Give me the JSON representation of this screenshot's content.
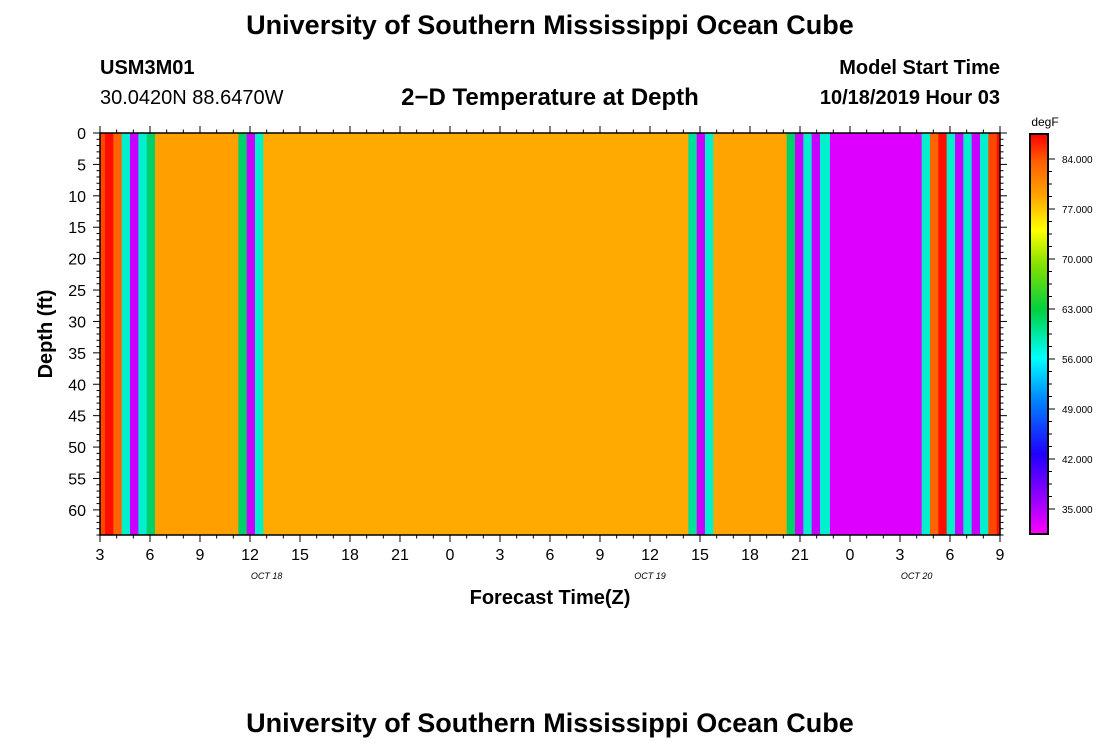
{
  "header": {
    "title": "University of Southern Mississippi Ocean Cube",
    "station_id": "USM3M01",
    "location": "30.0420N 88.6470W",
    "subtitle": "2−D Temperature at Depth",
    "model_start_label": "Model Start Time",
    "model_start_value": "10/18/2019 Hour 03"
  },
  "footer": {
    "title": "University of Southern Mississippi Ocean Cube"
  },
  "chart_data": {
    "type": "heatmap",
    "title": "2−D Temperature at Depth",
    "xlabel": "Forecast Time(Z)",
    "ylabel": "Depth (ft)",
    "y_ticks": [
      "0",
      "5",
      "10",
      "15",
      "20",
      "25",
      "30",
      "35",
      "40",
      "45",
      "50",
      "55",
      "60"
    ],
    "ylim": [
      0,
      64
    ],
    "y_inverted": true,
    "x_ticks": [
      "3",
      "6",
      "9",
      "12",
      "15",
      "18",
      "21",
      "0",
      "3",
      "6",
      "9",
      "12",
      "15",
      "18",
      "21",
      "0",
      "3",
      "6",
      "9"
    ],
    "xlim_hours_from_start": [
      0,
      54
    ],
    "date_labels": [
      {
        "label": "OCT 18",
        "at_hour": 10
      },
      {
        "label": "OCT 19",
        "at_hour": 33
      },
      {
        "label": "OCT 20",
        "at_hour": 49
      }
    ],
    "colorbar": {
      "unit": "degF",
      "ticks": [
        "84.000",
        "77.000",
        "70.000",
        "63.000",
        "56.000",
        "49.000",
        "42.000",
        "35.000"
      ],
      "range": [
        31.5,
        87.5
      ]
    },
    "columns_hour_ranges_with_degF": [
      [
        0.0,
        0.3,
        85
      ],
      [
        0.3,
        0.8,
        87
      ],
      [
        0.8,
        1.3,
        84
      ],
      [
        1.3,
        1.8,
        58
      ],
      [
        1.8,
        2.3,
        34
      ],
      [
        2.3,
        2.8,
        58
      ],
      [
        2.8,
        3.3,
        62
      ],
      [
        3.3,
        8.3,
        80.8
      ],
      [
        8.3,
        8.8,
        62
      ],
      [
        8.8,
        9.3,
        34
      ],
      [
        9.3,
        9.8,
        58
      ],
      [
        9.8,
        35.3,
        80
      ],
      [
        35.3,
        35.8,
        60
      ],
      [
        35.8,
        36.3,
        34
      ],
      [
        36.3,
        36.8,
        58
      ],
      [
        36.8,
        41.2,
        80.5
      ],
      [
        41.2,
        41.7,
        62
      ],
      [
        41.7,
        42.2,
        34
      ],
      [
        42.2,
        42.7,
        58
      ],
      [
        42.7,
        43.2,
        34
      ],
      [
        43.2,
        43.8,
        58
      ],
      [
        43.8,
        49.3,
        33
      ],
      [
        49.3,
        49.8,
        58
      ],
      [
        49.8,
        50.3,
        84
      ],
      [
        50.3,
        50.8,
        87
      ],
      [
        50.8,
        51.3,
        58
      ],
      [
        51.3,
        51.8,
        34
      ],
      [
        51.8,
        52.3,
        58
      ],
      [
        52.3,
        52.8,
        34
      ],
      [
        52.8,
        53.3,
        58
      ],
      [
        53.3,
        53.8,
        85
      ],
      [
        53.8,
        54.0,
        87
      ]
    ]
  }
}
